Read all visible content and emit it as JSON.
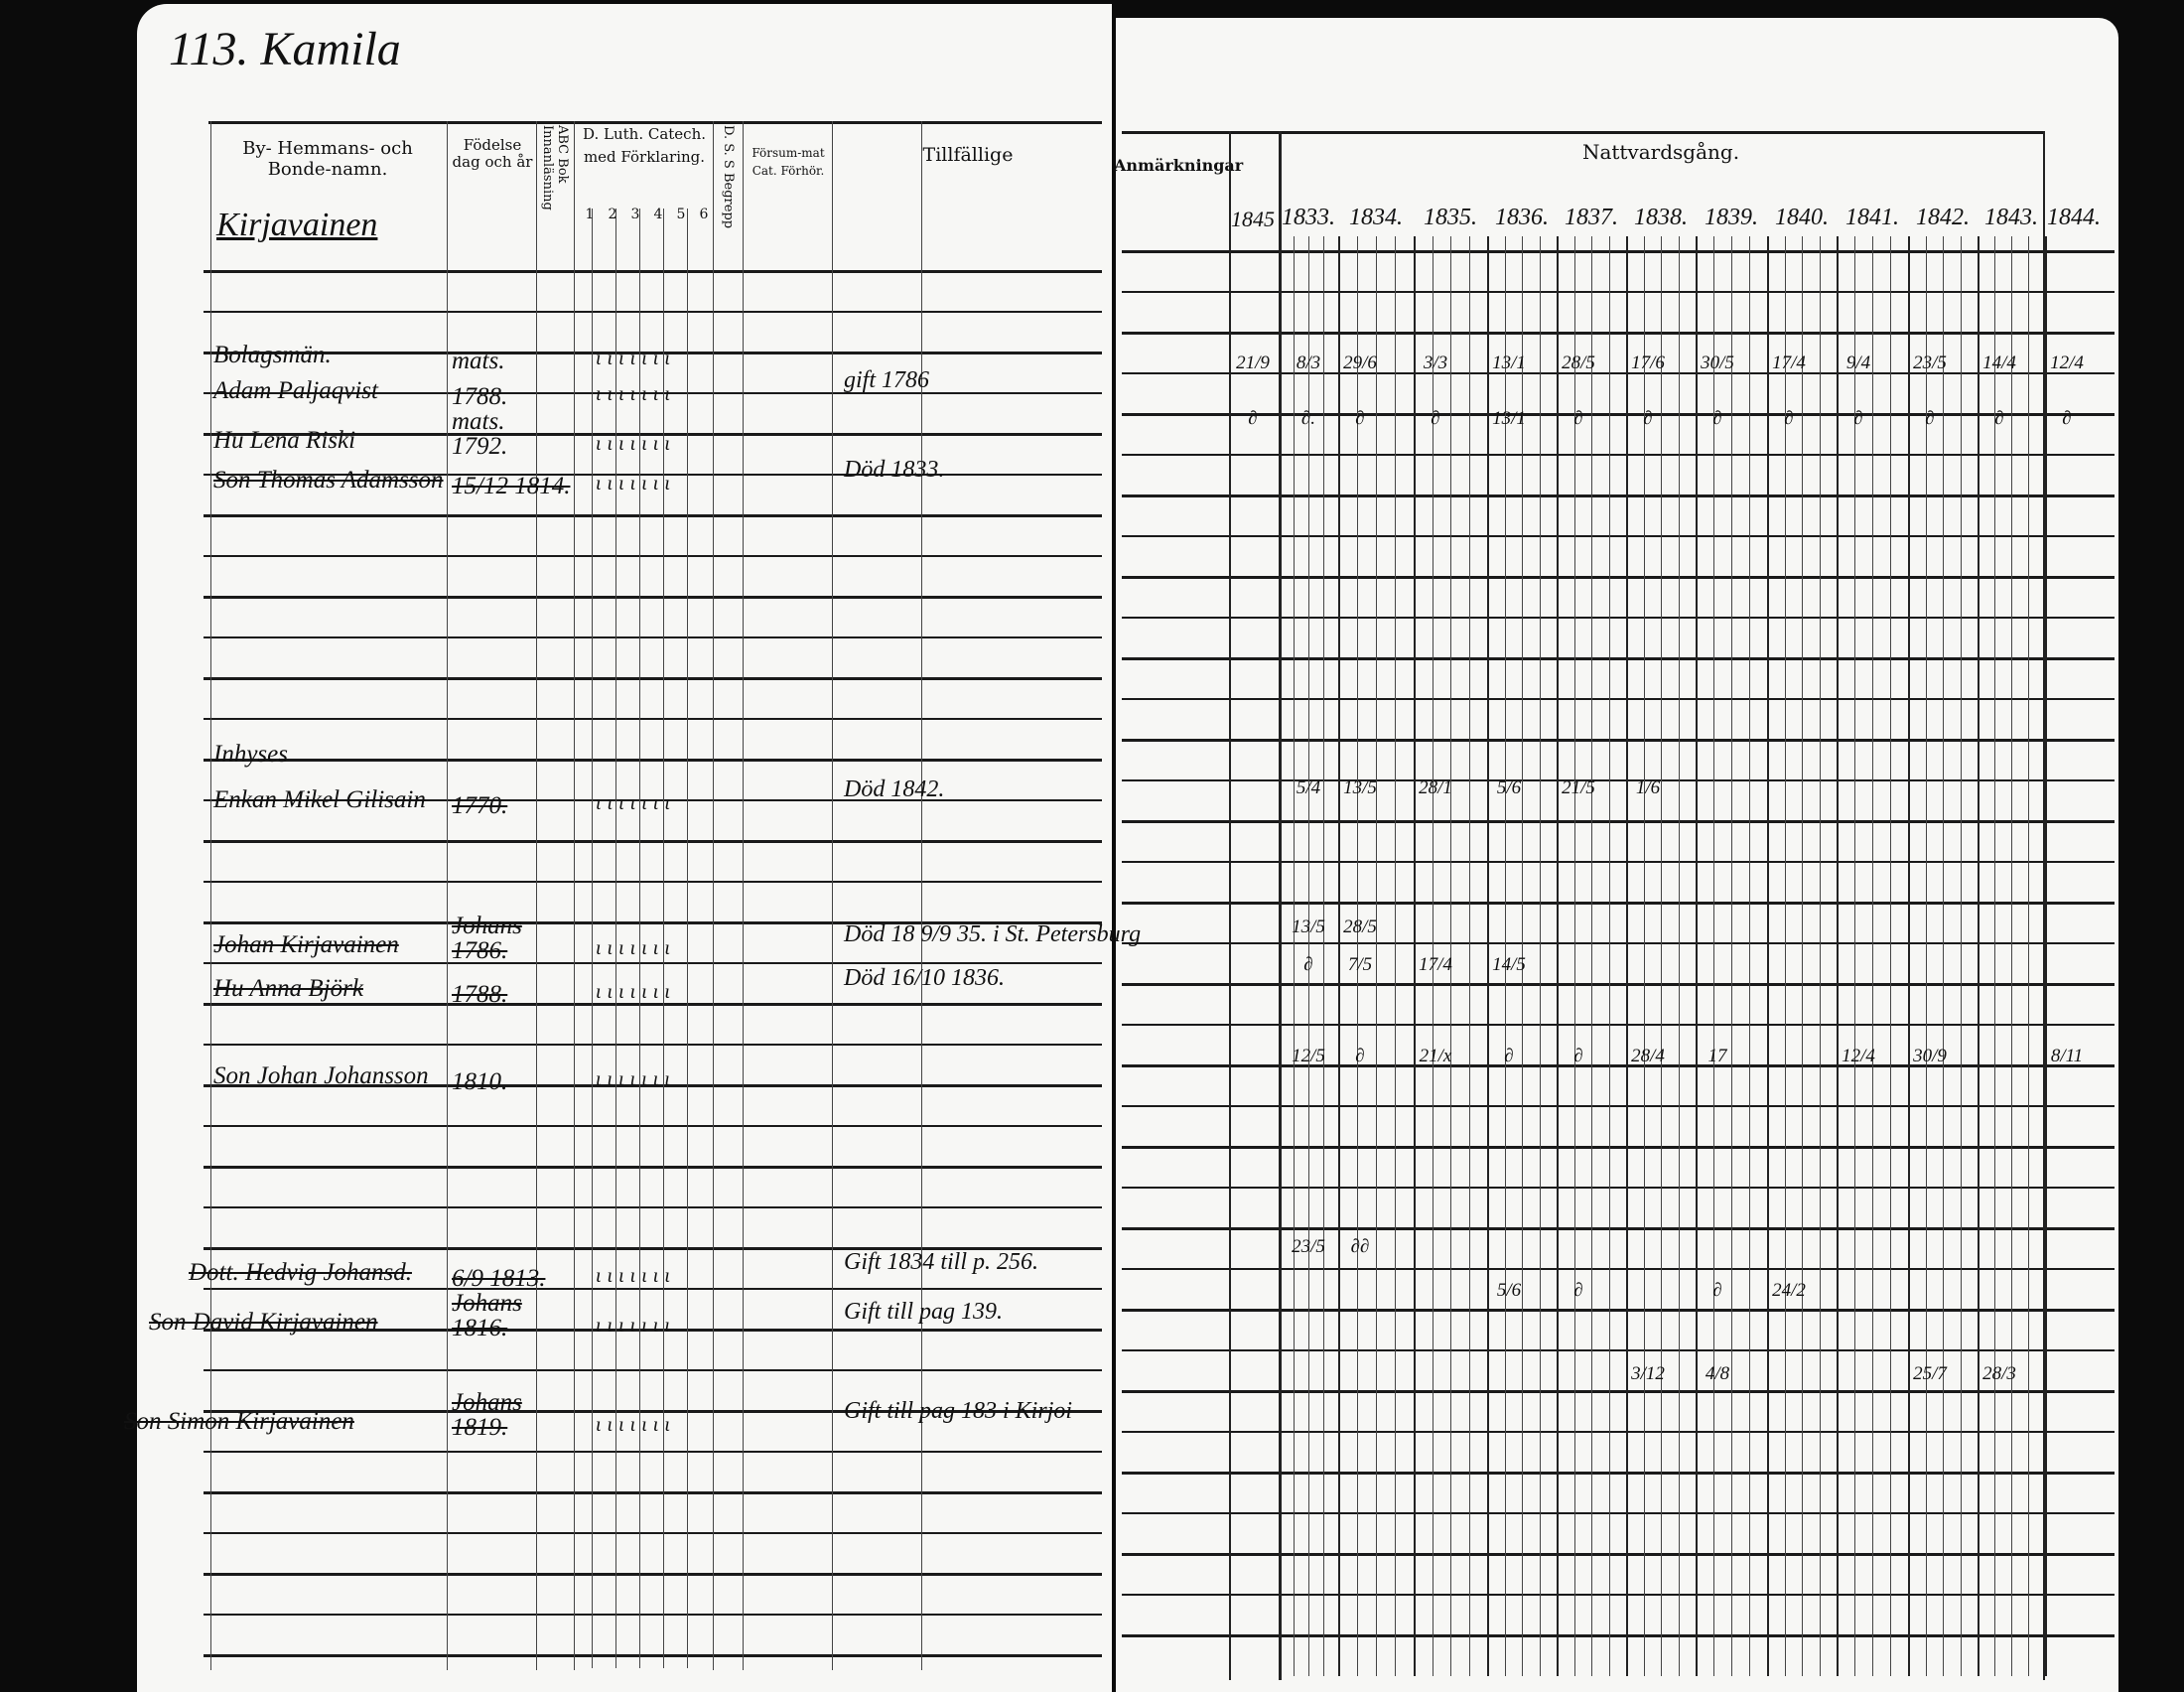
{
  "left_page": {
    "page_heading": "113. Kamila",
    "headers": {
      "name": "By- Hemmans- och Bonde-namn.",
      "birth": "Födelse dag och år",
      "abc": "ABC Bok Innanläsning",
      "catech": "D. Luth. Catech. med Förklaring.",
      "catech_nums": [
        "1",
        "2",
        "3",
        "4",
        "5",
        "6"
      ],
      "dss": "D. S. S Begrepp",
      "forsum": "Försum-mat Cat. Förhör.",
      "tillfallige": "Tillfällige"
    },
    "village": "Kirjavainen",
    "entries": [
      {
        "name": "Bolagsmän.",
        "birth": "mats.",
        "note": "",
        "struck": false
      },
      {
        "name": "Adam Paljaqvist",
        "birth": "1788.",
        "note": "gift 1786",
        "struck": false
      },
      {
        "name": "Hu Lena Riski",
        "birth": "mats. 1792.",
        "note": "",
        "struck": false
      },
      {
        "name": "Son Thomas Adamsson",
        "birth": "15/12 1814.",
        "note": "Död 1833.",
        "struck": true
      },
      {
        "name": "Inhyses",
        "birth": "",
        "note": "",
        "struck": false
      },
      {
        "name": "Enkan Mikel Gilisain",
        "birth": "1770.",
        "note": "Död 1842.",
        "struck": true
      },
      {
        "name": "Johan Kirjavainen",
        "birth": "Johans 1786.",
        "note": "Död 18 9/9 35. i St. Petersburg",
        "struck": true
      },
      {
        "name": "Hu Anna Björk",
        "birth": "1788.",
        "note": "Död 16/10 1836.",
        "struck": true
      },
      {
        "name": "Son Johan Johansson",
        "birth": "1810.",
        "note": "",
        "struck": false
      },
      {
        "name": "Dott. Hedvig Johansd.",
        "birth": "6/9 1813.",
        "note": "Gift 1834 till p. 256.",
        "struck": true
      },
      {
        "name": "Son David Kirjavainen",
        "birth": "Johans 1816.",
        "note": "Gift till pag 139.",
        "struck": true
      },
      {
        "name": "Son Simon Kirjavainen",
        "birth": "Johans 1819.",
        "note": "Gift till pag 183 i Kirjoi",
        "struck": true
      }
    ]
  },
  "right_page": {
    "headers": {
      "remarks": "Anmärkningar",
      "communion": "Nattvardsgång."
    },
    "years": [
      "1845",
      "1833.",
      "1834.",
      "1835.",
      "1836.",
      "1837.",
      "1838.",
      "1839.",
      "1840.",
      "1841.",
      "1842.",
      "1843.",
      "1844."
    ],
    "communion_rows": [
      {
        "row": "Adam",
        "marks": [
          "21/9",
          "8/3",
          "29/6",
          "3/3",
          "13/1",
          "28/5",
          "17/6",
          "30/5",
          "17/4",
          "9/4",
          "23/5",
          "14/4",
          "12/4"
        ]
      },
      {
        "row": "Lena",
        "marks": [
          "∂",
          "∂.",
          "∂",
          "∂",
          "13/1",
          "∂",
          "∂",
          "∂",
          "∂",
          "∂",
          "∂",
          "∂",
          "∂"
        ]
      },
      {
        "row": "Mikel",
        "marks": [
          "",
          "5/4",
          "13/5",
          "28/1",
          "5/6",
          "21/5",
          "1/6",
          "",
          "",
          "",
          "",
          "",
          ""
        ]
      },
      {
        "row": "Johan",
        "marks": [
          "",
          "13/5",
          "28/5",
          "",
          "",
          "",
          "",
          "",
          "",
          "",
          "",
          "",
          ""
        ]
      },
      {
        "row": "Anna",
        "marks": [
          "",
          "∂",
          "7/5",
          "17/4",
          "14/5",
          "",
          "",
          "",
          "",
          "",
          "",
          "",
          ""
        ]
      },
      {
        "row": "Son Johan",
        "marks": [
          "",
          "12/5",
          "∂",
          "21/x",
          "∂",
          "∂",
          "28/4",
          "17",
          "",
          "12/4",
          "30/9",
          "",
          "8/11"
        ]
      },
      {
        "row": "Hedvig",
        "marks": [
          "",
          "23/5",
          "∂∂",
          "",
          "",
          "",
          "",
          "",
          "",
          "",
          "",
          "",
          ""
        ]
      },
      {
        "row": "David",
        "marks": [
          "",
          "",
          "",
          "",
          "5/6",
          "∂",
          "",
          "∂",
          "24/2",
          "",
          "",
          "",
          ""
        ]
      },
      {
        "row": "Simon",
        "marks": [
          "",
          "",
          "",
          "",
          "",
          "",
          "3/12",
          "4/8",
          "",
          "",
          "25/7",
          "28/3",
          ""
        ]
      }
    ]
  }
}
